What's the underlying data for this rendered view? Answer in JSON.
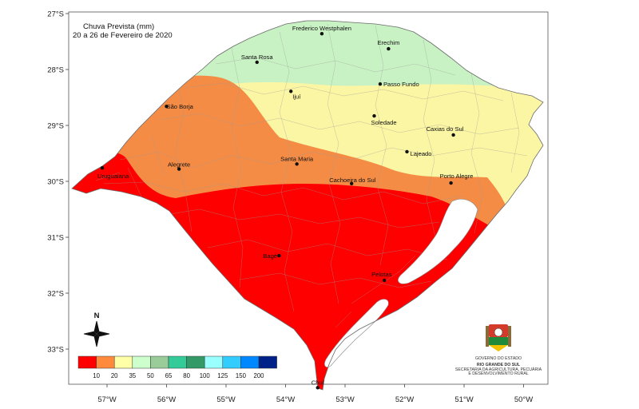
{
  "title": {
    "line1": "Chuva Prevista (mm)",
    "line2": "20 a 26 de Fevereiro de 2020"
  },
  "lon_ticks": [
    "57°W",
    "56°W",
    "55°W",
    "54°W",
    "53°W",
    "52°W",
    "51°W",
    "50°W"
  ],
  "lat_ticks": [
    "27°S",
    "28°S",
    "29°S",
    "30°S",
    "31°S",
    "32°S",
    "33°S"
  ],
  "cities": [
    {
      "name": "Frederico Westphalen",
      "lon": -53.39,
      "lat": -27.36
    },
    {
      "name": "Erechim",
      "lon": -52.27,
      "lat": -27.63
    },
    {
      "name": "Santa Rosa",
      "lon": -54.48,
      "lat": -27.87
    },
    {
      "name": "Passo Fundo",
      "lon": -52.41,
      "lat": -28.26
    },
    {
      "name": "Ijuí",
      "lon": -53.91,
      "lat": -28.39
    },
    {
      "name": "São Borja",
      "lon": -56.0,
      "lat": -28.66
    },
    {
      "name": "Soledade",
      "lon": -52.51,
      "lat": -28.83
    },
    {
      "name": "Caxias do Sul",
      "lon": -51.18,
      "lat": -29.17
    },
    {
      "name": "Lajeado",
      "lon": -51.96,
      "lat": -29.47
    },
    {
      "name": "Alegrete",
      "lon": -55.79,
      "lat": -29.78
    },
    {
      "name": "Santa Maria",
      "lon": -53.81,
      "lat": -29.69
    },
    {
      "name": "Uruguaiana",
      "lon": -57.08,
      "lat": -29.76
    },
    {
      "name": "Porto Alegre",
      "lon": -51.22,
      "lat": -30.03
    },
    {
      "name": "Cachoeira do Sul",
      "lon": -52.89,
      "lat": -30.04
    },
    {
      "name": "Bagé",
      "lon": -54.11,
      "lat": -31.33
    },
    {
      "name": "Pelotas",
      "lon": -52.34,
      "lat": -31.77
    },
    {
      "name": "Chuí",
      "lon": -53.46,
      "lat": -33.69
    }
  ],
  "legend": {
    "colors": [
      "#ff0000",
      "#ff8a3c",
      "#ffffa8",
      "#ccffcc",
      "#99cc99",
      "#33cc99",
      "#339966",
      "#99ffff",
      "#33ccff",
      "#0088ff",
      "#002288"
    ],
    "labels": [
      "10",
      "20",
      "35",
      "50",
      "65",
      "80",
      "100",
      "125",
      "150",
      "200"
    ]
  },
  "zone_colors": {
    "green": "#c8f2c4",
    "yellow": "#fbf6a4",
    "orange": "#f58c46",
    "red": "#fe0000"
  },
  "north": "N",
  "logo": {
    "line1": "GOVERNO DO ESTADO",
    "line2": "RIO GRANDE DO SUL",
    "line3": "SECRETARIA DA AGRICULTURA, PECUÁRIA",
    "line4": "E DESENVOLVIMENTO RURAL"
  }
}
